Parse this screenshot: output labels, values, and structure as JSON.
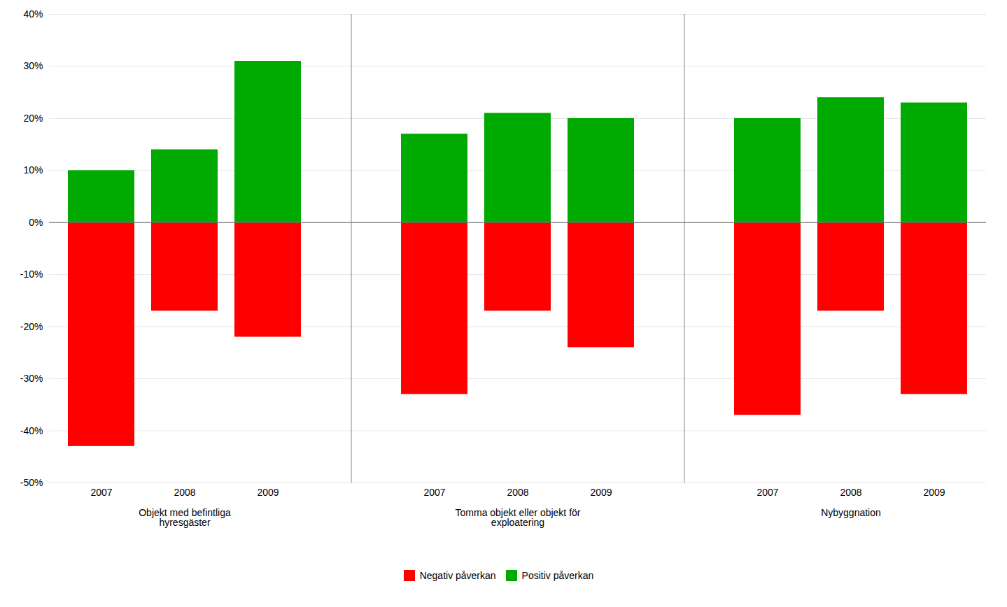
{
  "chart_data": {
    "type": "bar",
    "groups": [
      {
        "label": "Objekt med befintliga\nhyresgäster",
        "categories": [
          "2007",
          "2008",
          "2009"
        ]
      },
      {
        "label": "Tomma objekt eller objekt för\nexploatering",
        "categories": [
          "2007",
          "2008",
          "2009"
        ]
      },
      {
        "label": "Nybyggnation",
        "categories": [
          "2007",
          "2008",
          "2009"
        ]
      }
    ],
    "series": [
      {
        "name": "Negativ påverkan",
        "color": "#ff0000",
        "values": [
          -43,
          -17,
          -22,
          -33,
          -17,
          -24,
          -37,
          -17,
          -33
        ]
      },
      {
        "name": "Positiv påverkan",
        "color": "#00aa00",
        "values": [
          10,
          14,
          31,
          17,
          21,
          20,
          20,
          24,
          23
        ]
      }
    ],
    "ylim": [
      -50,
      40
    ],
    "yticks": [
      {
        "value": -50,
        "label": "-50%"
      },
      {
        "value": -40,
        "label": "-40%"
      },
      {
        "value": -30,
        "label": "-30%"
      },
      {
        "value": -20,
        "label": "-20%"
      },
      {
        "value": -10,
        "label": "-10%"
      },
      {
        "value": 0,
        "label": "0%"
      },
      {
        "value": 10,
        "label": "10%"
      },
      {
        "value": 20,
        "label": "20%"
      },
      {
        "value": 30,
        "label": "30%"
      },
      {
        "value": 40,
        "label": "40%"
      }
    ],
    "grid": true,
    "legend": "bottom"
  }
}
